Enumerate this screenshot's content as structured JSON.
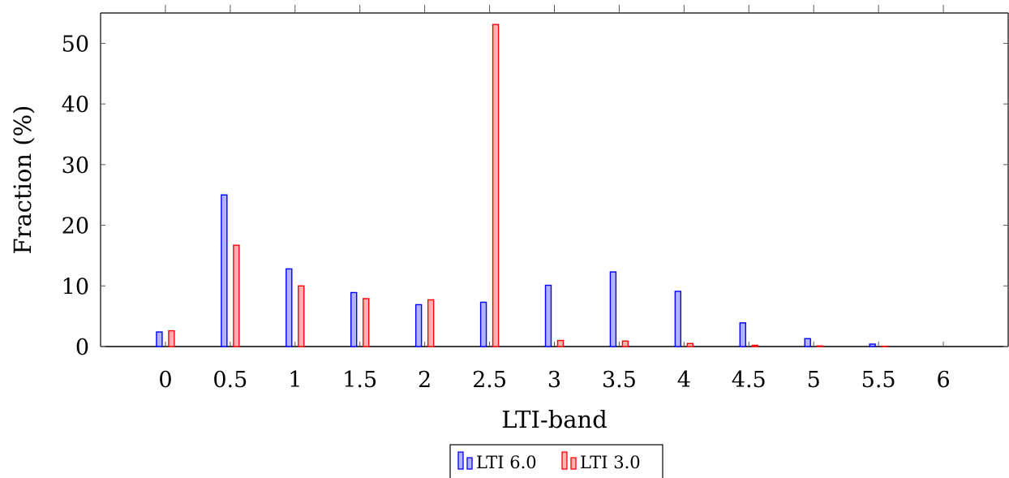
{
  "chart_data": {
    "type": "bar",
    "xlabel": "LTI-band",
    "ylabel": "Fraction (%)",
    "categories": [
      "0",
      "0.5",
      "1",
      "1.5",
      "2",
      "2.5",
      "3",
      "3.5",
      "4",
      "4.5",
      "5",
      "5.5",
      "6"
    ],
    "x": [
      0,
      0.5,
      1,
      1.5,
      2,
      2.5,
      3,
      3.5,
      4,
      4.5,
      5,
      5.5,
      6
    ],
    "xlim": [
      -0.5,
      6.5
    ],
    "ylim": [
      0,
      55
    ],
    "yticks": [
      0,
      10,
      20,
      30,
      40,
      50
    ],
    "grid": false,
    "legend_position": "bottom-center",
    "series": [
      {
        "name": "LTI 6.0",
        "stroke": "#0000ff",
        "fill": "#b2b2ff",
        "values": [
          2.4,
          25.0,
          12.8,
          8.9,
          6.9,
          7.3,
          10.1,
          12.3,
          9.1,
          3.9,
          1.3,
          0.4,
          0.0
        ]
      },
      {
        "name": "LTI 3.0",
        "stroke": "#ff0000",
        "fill": "#ffb2b2",
        "values": [
          2.6,
          16.7,
          10.0,
          7.9,
          7.7,
          53.1,
          1.0,
          0.9,
          0.5,
          0.2,
          0.1,
          0.05,
          0.0
        ]
      }
    ]
  }
}
